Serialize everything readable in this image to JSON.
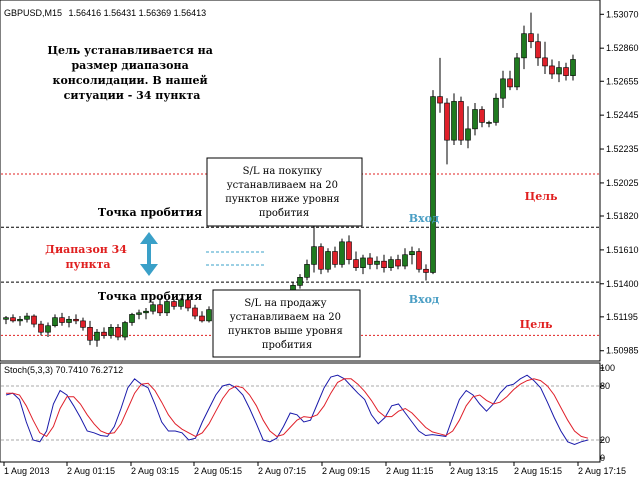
{
  "header": {
    "symbol": "GBPUSD,M15",
    "ohlc": "1.56416 1.56431 1.56369 1.56413"
  },
  "colors": {
    "bull": "#1f7a1f",
    "bear": "#e0202a",
    "stoch_main": "#1a1aaa",
    "stoch_signal": "#e0202a",
    "target_line": "#e02020",
    "arrow": "#3aa0c8"
  },
  "chart_data": [
    {
      "type": "candlestick",
      "title": "GBPUSD,M15",
      "y_ticks": [
        "1.53070",
        "1.52860",
        "1.52655",
        "1.52445",
        "1.52235",
        "1.52025",
        "1.51820",
        "1.51610",
        "1.51400",
        "1.51195",
        "1.50985"
      ],
      "ylim": [
        1.5094,
        1.5314
      ],
      "x_ticks": [
        "1 Aug 2013",
        "2 Aug 01:15",
        "2 Aug 03:15",
        "2 Aug 05:15",
        "2 Aug 07:15",
        "2 Aug 09:15",
        "2 Aug 11:15",
        "2 Aug 13:15",
        "2 Aug 15:15",
        "2 Aug 17:15"
      ],
      "candles": [
        [
          1.5118,
          1.512,
          1.5115,
          1.5119
        ],
        [
          1.5119,
          1.5121,
          1.5116,
          1.5117
        ],
        [
          1.5117,
          1.512,
          1.5114,
          1.5118
        ],
        [
          1.5118,
          1.5122,
          1.5116,
          1.512
        ],
        [
          1.512,
          1.5121,
          1.5113,
          1.5115
        ],
        [
          1.5115,
          1.5117,
          1.5108,
          1.511
        ],
        [
          1.511,
          1.5116,
          1.5107,
          1.5114
        ],
        [
          1.5114,
          1.5121,
          1.5113,
          1.5119
        ],
        [
          1.5119,
          1.5122,
          1.5114,
          1.5116
        ],
        [
          1.5116,
          1.512,
          1.5113,
          1.5118
        ],
        [
          1.5118,
          1.5121,
          1.5115,
          1.5117
        ],
        [
          1.5117,
          1.5119,
          1.5111,
          1.5113
        ],
        [
          1.5113,
          1.5117,
          1.5102,
          1.5105
        ],
        [
          1.5105,
          1.5112,
          1.5101,
          1.511
        ],
        [
          1.511,
          1.5113,
          1.5106,
          1.5108
        ],
        [
          1.5108,
          1.5115,
          1.5106,
          1.5113
        ],
        [
          1.5113,
          1.5115,
          1.5105,
          1.5107
        ],
        [
          1.5107,
          1.5117,
          1.5105,
          1.5116
        ],
        [
          1.5116,
          1.5122,
          1.5114,
          1.5121
        ],
        [
          1.5121,
          1.5124,
          1.5118,
          1.5122
        ],
        [
          1.5122,
          1.5125,
          1.5118,
          1.5123
        ],
        [
          1.5123,
          1.5129,
          1.5121,
          1.5127
        ],
        [
          1.5127,
          1.5131,
          1.512,
          1.5122
        ],
        [
          1.5122,
          1.513,
          1.512,
          1.5129
        ],
        [
          1.5129,
          1.513,
          1.5124,
          1.5126
        ],
        [
          1.5126,
          1.5131,
          1.5124,
          1.513
        ],
        [
          1.513,
          1.5131,
          1.5123,
          1.5125
        ],
        [
          1.5125,
          1.5127,
          1.5118,
          1.512
        ],
        [
          1.512,
          1.5123,
          1.5116,
          1.5117
        ],
        [
          1.5117,
          1.5126,
          1.5116,
          1.5124
        ],
        [
          1.5124,
          1.5127,
          1.5118,
          1.512
        ],
        [
          1.512,
          1.5124,
          1.5117,
          1.5122
        ],
        [
          1.5122,
          1.5125,
          1.5119,
          1.5121
        ],
        [
          1.5121,
          1.5124,
          1.5118,
          1.5123
        ],
        [
          1.5123,
          1.5127,
          1.5121,
          1.5126
        ],
        [
          1.5126,
          1.5129,
          1.5122,
          1.5124
        ],
        [
          1.5124,
          1.5128,
          1.5121,
          1.5127
        ],
        [
          1.5127,
          1.513,
          1.5124,
          1.5125
        ],
        [
          1.5125,
          1.5128,
          1.5123,
          1.5127
        ],
        [
          1.5127,
          1.5131,
          1.5125,
          1.5129
        ],
        [
          1.5129,
          1.5134,
          1.5127,
          1.5133
        ],
        [
          1.5133,
          1.5141,
          1.5131,
          1.5139
        ],
        [
          1.5139,
          1.5146,
          1.5137,
          1.5144
        ],
        [
          1.5144,
          1.5155,
          1.5142,
          1.5152
        ],
        [
          1.5152,
          1.518,
          1.5147,
          1.5163
        ],
        [
          1.5163,
          1.5165,
          1.5146,
          1.5149
        ],
        [
          1.5149,
          1.5162,
          1.5147,
          1.516
        ],
        [
          1.516,
          1.5163,
          1.515,
          1.5152
        ],
        [
          1.5152,
          1.5168,
          1.515,
          1.5166
        ],
        [
          1.5166,
          1.517,
          1.5152,
          1.5155
        ],
        [
          1.5155,
          1.516,
          1.5148,
          1.515
        ],
        [
          1.515,
          1.5158,
          1.5146,
          1.5156
        ],
        [
          1.5156,
          1.5159,
          1.5149,
          1.5152
        ],
        [
          1.5152,
          1.5157,
          1.5149,
          1.5154
        ],
        [
          1.5154,
          1.5158,
          1.5147,
          1.515
        ],
        [
          1.515,
          1.5157,
          1.5148,
          1.5155
        ],
        [
          1.5155,
          1.5158,
          1.5149,
          1.5151
        ],
        [
          1.5151,
          1.5162,
          1.5149,
          1.5158
        ],
        [
          1.5158,
          1.5163,
          1.5152,
          1.516
        ],
        [
          1.516,
          1.5162,
          1.5147,
          1.5149
        ],
        [
          1.5149,
          1.5152,
          1.5142,
          1.5147
        ],
        [
          1.5147,
          1.526,
          1.5146,
          1.5256
        ],
        [
          1.5256,
          1.528,
          1.5246,
          1.5252
        ],
        [
          1.5252,
          1.5255,
          1.5214,
          1.5229
        ],
        [
          1.5229,
          1.5258,
          1.5226,
          1.5253
        ],
        [
          1.5253,
          1.5256,
          1.5226,
          1.5229
        ],
        [
          1.5229,
          1.525,
          1.5224,
          1.5236
        ],
        [
          1.5236,
          1.5252,
          1.5232,
          1.5248
        ],
        [
          1.5248,
          1.525,
          1.5237,
          1.524
        ],
        [
          1.524,
          1.5241,
          1.5237,
          1.524
        ],
        [
          1.524,
          1.5258,
          1.5238,
          1.5255
        ],
        [
          1.5255,
          1.5272,
          1.5249,
          1.5267
        ],
        [
          1.5267,
          1.5272,
          1.526,
          1.5262
        ],
        [
          1.5262,
          1.5283,
          1.526,
          1.528
        ],
        [
          1.528,
          1.53,
          1.5273,
          1.5295
        ],
        [
          1.5295,
          1.5308,
          1.5286,
          1.529
        ],
        [
          1.529,
          1.5295,
          1.5275,
          1.528
        ],
        [
          1.528,
          1.529,
          1.527,
          1.5275
        ],
        [
          1.5275,
          1.5279,
          1.5267,
          1.527
        ],
        [
          1.527,
          1.5278,
          1.5265,
          1.5274
        ],
        [
          1.5274,
          1.5277,
          1.5266,
          1.5269
        ],
        [
          1.5269,
          1.5282,
          1.5266,
          1.5279
        ]
      ]
    },
    {
      "type": "line",
      "title": "Stoch(5,3,3) 70.7410 76.2712",
      "ylim": [
        0,
        100
      ],
      "levels": [
        80,
        20
      ],
      "y_ticks": [
        "100",
        "80",
        "20",
        "0"
      ],
      "series": [
        {
          "values": [
            70,
            72,
            65,
            40,
            20,
            18,
            30,
            60,
            75,
            70,
            58,
            45,
            30,
            28,
            25,
            24,
            35,
            55,
            78,
            88,
            82,
            78,
            60,
            40,
            30,
            30,
            28,
            20,
            22,
            40,
            55,
            70,
            80,
            82,
            78,
            70,
            55,
            38,
            20,
            18,
            22,
            35,
            50,
            48,
            40,
            42,
            60,
            78,
            90,
            92,
            88,
            80,
            72,
            65,
            48,
            38,
            45,
            58,
            60,
            50,
            40,
            30,
            25,
            26,
            25,
            24,
            45,
            65,
            75,
            70,
            60,
            52,
            60,
            72,
            80,
            82,
            88,
            92,
            86,
            78,
            62,
            45,
            30,
            18,
            15,
            18,
            20
          ]
        },
        {
          "values": [
            72,
            72,
            70,
            58,
            42,
            28,
            24,
            35,
            55,
            68,
            68,
            60,
            48,
            38,
            30,
            27,
            28,
            38,
            55,
            72,
            82,
            83,
            75,
            62,
            48,
            38,
            32,
            28,
            24,
            28,
            38,
            52,
            66,
            76,
            80,
            78,
            70,
            58,
            42,
            30,
            24,
            26,
            34,
            42,
            46,
            45,
            48,
            58,
            72,
            84,
            88,
            88,
            82,
            74,
            64,
            52,
            46,
            46,
            52,
            55,
            50,
            42,
            34,
            29,
            27,
            25,
            30,
            42,
            58,
            68,
            70,
            64,
            60,
            62,
            68,
            76,
            82,
            86,
            88,
            86,
            80,
            70,
            56,
            42,
            30,
            24,
            22
          ]
        }
      ]
    }
  ],
  "annotations": {
    "top_note": [
      "Цель устанавливается на",
      "размер диапазона",
      "консолидации. В нашей",
      "ситуации - 34 пункта"
    ],
    "breakout_upper": "Точка пробития",
    "breakout_lower": "Точка пробития",
    "range_label": [
      "Диапазон 34",
      "пункта"
    ],
    "sl_buy": [
      "S/L на покупку",
      "устанавливаем на 20",
      "пунктов ниже уровня",
      "пробития"
    ],
    "sl_sell": [
      "S/L на продажу",
      "устанавливаем на 20",
      "пунктов выше уровня",
      "пробития"
    ],
    "entry_upper": "Вход",
    "entry_lower": "Вход",
    "target_upper": "Цель",
    "target_lower": "Цель"
  },
  "levels": {
    "target_up": 1.5208,
    "breakout_up": 1.5175,
    "breakout_down": 1.5141,
    "target_down": 1.5108
  }
}
